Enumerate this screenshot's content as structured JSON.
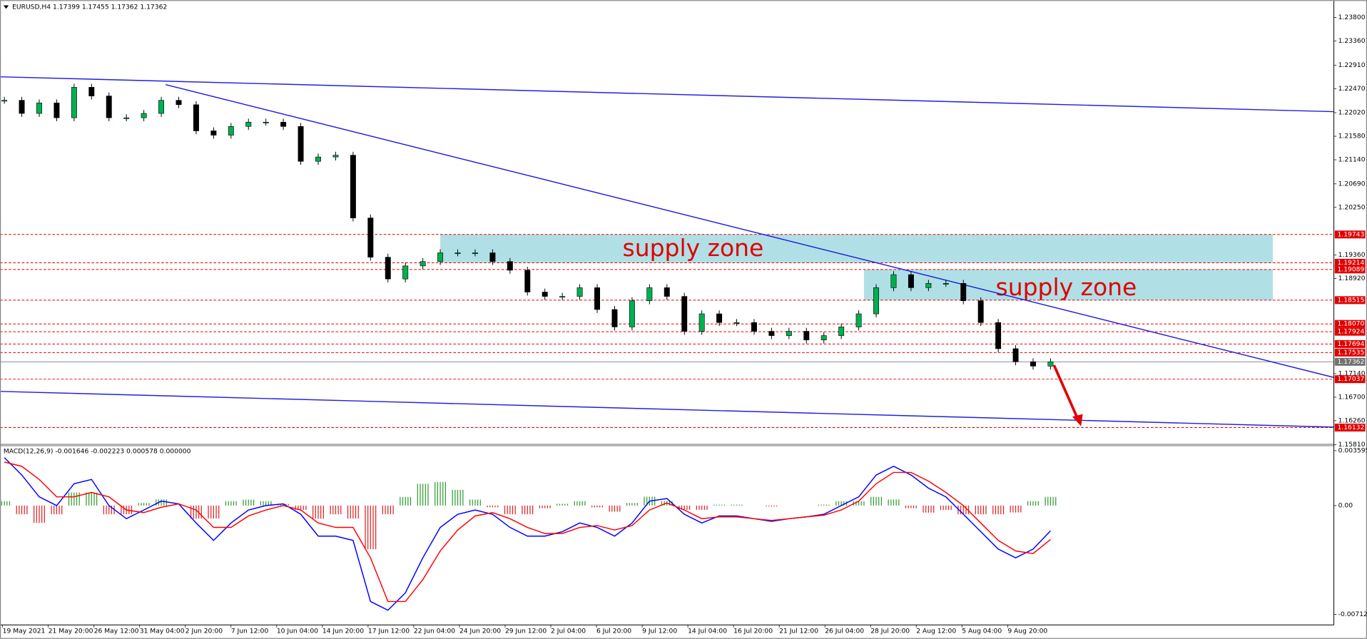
{
  "header": {
    "title": "EURUSD,H4  1.17399 1.17455 1.17362 1.17362"
  },
  "chart_data": [
    {
      "type": "candlestick",
      "x_labels": [
        "19 May 2021",
        "21 May 20:00",
        "26 May 12:00",
        "31 May 04:00",
        "2 Jun 20:00",
        "7 Jun 12:00",
        "10 Jun 04:00",
        "14 Jun 20:00",
        "17 Jun 12:00",
        "22 Jun 04:00",
        "24 Jun 20:00",
        "29 Jun 12:00",
        "2 Jul 04:00",
        "6 Jul 20:00",
        "9 Jul 12:00",
        "14 Jul 04:00",
        "16 Jul 20:00",
        "21 Jul 12:00",
        "26 Jul 04:00",
        "28 Jul 20:00",
        "2 Aug 12:00",
        "5 Aug 04:00",
        "9 Aug 20:00"
      ],
      "values": [
        1.22252,
        1.22007,
        1.22203,
        1.21926,
        1.22496,
        1.22333,
        1.21926,
        1.21926,
        1.22007,
        1.22252,
        1.2217,
        1.21681,
        1.216,
        1.21763,
        1.21844,
        1.21844,
        1.21763,
        1.21111,
        1.21192,
        1.21225,
        1.20052,
        1.19318,
        1.18911,
        1.19155,
        1.19237,
        1.194,
        1.194,
        1.194,
        1.19237,
        1.19074,
        1.18666,
        1.18585,
        1.18585,
        1.18748,
        1.1834,
        1.18014,
        1.18503,
        1.18748,
        1.18585,
        1.17933,
        1.18259,
        1.18096,
        1.18096,
        1.17933,
        1.17852,
        1.17933,
        1.1777,
        1.17852,
        1.18014,
        1.18259,
        1.18748,
        1.18992,
        1.18748,
        1.18829,
        1.18829,
        1.18503,
        1.18096,
        1.17607,
        1.17363,
        1.17281,
        1.17362
      ],
      "up_color": "#00b050",
      "down_color": "#000000",
      "ylim": [
        1.15847,
        1.24126
      ],
      "yticks": [
        {
          "value": 1.238,
          "label": "1.23800"
        },
        {
          "value": 1.2336,
          "label": "1.23360"
        },
        {
          "value": 1.2291,
          "label": "1.22910"
        },
        {
          "value": 1.2247,
          "label": "1.22470"
        },
        {
          "value": 1.2202,
          "label": "1.22020"
        },
        {
          "value": 1.2158,
          "label": "1.21580"
        },
        {
          "value": 1.2114,
          "label": "1.21140"
        },
        {
          "value": 1.2069,
          "label": "1.20690"
        },
        {
          "value": 1.2025,
          "label": "1.20250"
        },
        {
          "value": 1.1936,
          "label": "1.19360"
        },
        {
          "value": 1.1892,
          "label": "1.18920"
        },
        {
          "value": 1.1714,
          "label": "1.17140"
        },
        {
          "value": 1.167,
          "label": "1.16700"
        },
        {
          "value": 1.1626,
          "label": "1.16260"
        },
        {
          "value": 1.1581,
          "label": "1.15810"
        }
      ],
      "levels": [
        {
          "value": 1.19743,
          "label": "1.19743"
        },
        {
          "value": 1.19214,
          "label": "1.19214"
        },
        {
          "value": 1.19089,
          "label": "1.19089"
        },
        {
          "value": 1.18515,
          "label": "1.18515"
        },
        {
          "value": 1.1807,
          "label": "1.18070"
        },
        {
          "value": 1.17924,
          "label": "1.17924"
        },
        {
          "value": 1.17694,
          "label": "1.17694"
        },
        {
          "value": 1.17535,
          "label": "1.17535"
        },
        {
          "value": 1.17037,
          "label": "1.17037"
        },
        {
          "value": 1.16132,
          "label": "1.16132"
        }
      ],
      "current": {
        "value": 1.17362,
        "label": "1.17362"
      },
      "zones": [
        {
          "text": "supply zone",
          "low": 1.19214,
          "high": 1.19743
        },
        {
          "text": "supply zone",
          "low": 1.18515,
          "high": 1.19089
        }
      ]
    },
    {
      "type": "macd",
      "title": "MACD(12,26,9) -0.001646 -0.002223 0.000578 0.000000",
      "series": [
        {
          "name": "main",
          "color": "#0000ff",
          "values": [
            0.00314,
            0.002,
            0.00057,
            0,
            0.00143,
            0.00171,
            0,
            -0.00086,
            -0.00029,
            0.00029,
            0.00011,
            -0.00114,
            -0.00228,
            -0.00114,
            -0.00029,
            0,
            0.00011,
            -0.00057,
            -0.002,
            -0.002,
            -0.00228,
            -0.00628,
            -0.00685,
            -0.00571,
            -0.00342,
            -0.00143,
            -0.00057,
            -0.00029,
            -0.00057,
            -0.00143,
            -0.002,
            -0.002,
            -0.00171,
            -0.00114,
            -0.00143,
            -0.002,
            -0.00114,
            0.00029,
            0.00046,
            -0.00057,
            -0.00114,
            -0.00068,
            -0.00068,
            -0.00086,
            -0.00103,
            -0.00086,
            -0.00074,
            -0.00057,
            0,
            0.00057,
            0.002,
            0.00257,
            0.002,
            0.00114,
            0.00057,
            -0.00057,
            -0.00171,
            -0.00285,
            -0.00342,
            -0.00285,
            -0.00165
          ]
        },
        {
          "name": "signal",
          "color": "#ff0000",
          "values": [
            0.00285,
            0.00257,
            0.00171,
            0.00057,
            0.00057,
            0.00086,
            0.00057,
            -0.00029,
            -0.00046,
            -0.00011,
            0.00011,
            -0.00029,
            -0.00143,
            -0.00143,
            -0.00068,
            -0.00029,
            0,
            -0.00029,
            -0.00114,
            -0.00143,
            -0.00143,
            -0.00342,
            -0.00628,
            -0.00628,
            -0.00485,
            -0.00297,
            -0.0016,
            -0.00068,
            -0.00046,
            -0.00086,
            -0.00143,
            -0.00183,
            -0.00183,
            -0.00143,
            -0.00131,
            -0.0016,
            -0.00131,
            -0.00029,
            0.00017,
            -0.00029,
            -0.00086,
            -0.00074,
            -0.00074,
            -0.00086,
            -0.00097,
            -0.00086,
            -0.00074,
            -0.00063,
            -0.00029,
            0.00029,
            0.00143,
            0.00217,
            0.00217,
            0.0016,
            0.00086,
            0,
            -0.00114,
            -0.00228,
            -0.00297,
            -0.00314,
            -0.00222
          ]
        }
      ],
      "histogram": {
        "up_color": "#2e9e2e",
        "down_color": "#e02020",
        "values": [
          0.00029,
          -0.00057,
          -0.00114,
          -0.00057,
          0.00086,
          0.00085,
          -0.00057,
          -0.00057,
          0.00017,
          0.0004,
          0,
          -0.00085,
          -0.00085,
          0.00029,
          0.00039,
          0.00029,
          0.00011,
          -0.00028,
          -0.00086,
          -0.00057,
          -0.00085,
          -0.00286,
          -0.00057,
          0.00057,
          0.00143,
          0.00154,
          0.00103,
          0.00039,
          -0.00011,
          -0.00057,
          -0.00057,
          -0.00017,
          0.00012,
          0.00029,
          -0.00012,
          -0.0004,
          0.00017,
          0.00058,
          0.00029,
          -0.00028,
          -0.00028,
          6e-05,
          6e-05,
          0,
          -6e-05,
          0,
          0,
          6e-05,
          0.00029,
          0.00028,
          0.00057,
          0.0004,
          -0.00017,
          -0.00046,
          -0.00029,
          -0.00057,
          -0.00057,
          -0.00057,
          -0.00045,
          0.00029,
          0.00057
        ]
      },
      "ylim": [
        -0.0077,
        0.00388
      ],
      "yticks": [
        {
          "value": 0.003595,
          "label": "0.003595"
        },
        {
          "value": 0,
          "label": "0.00"
        },
        {
          "value": -0.007125,
          "label": "-0.007125"
        }
      ]
    }
  ]
}
